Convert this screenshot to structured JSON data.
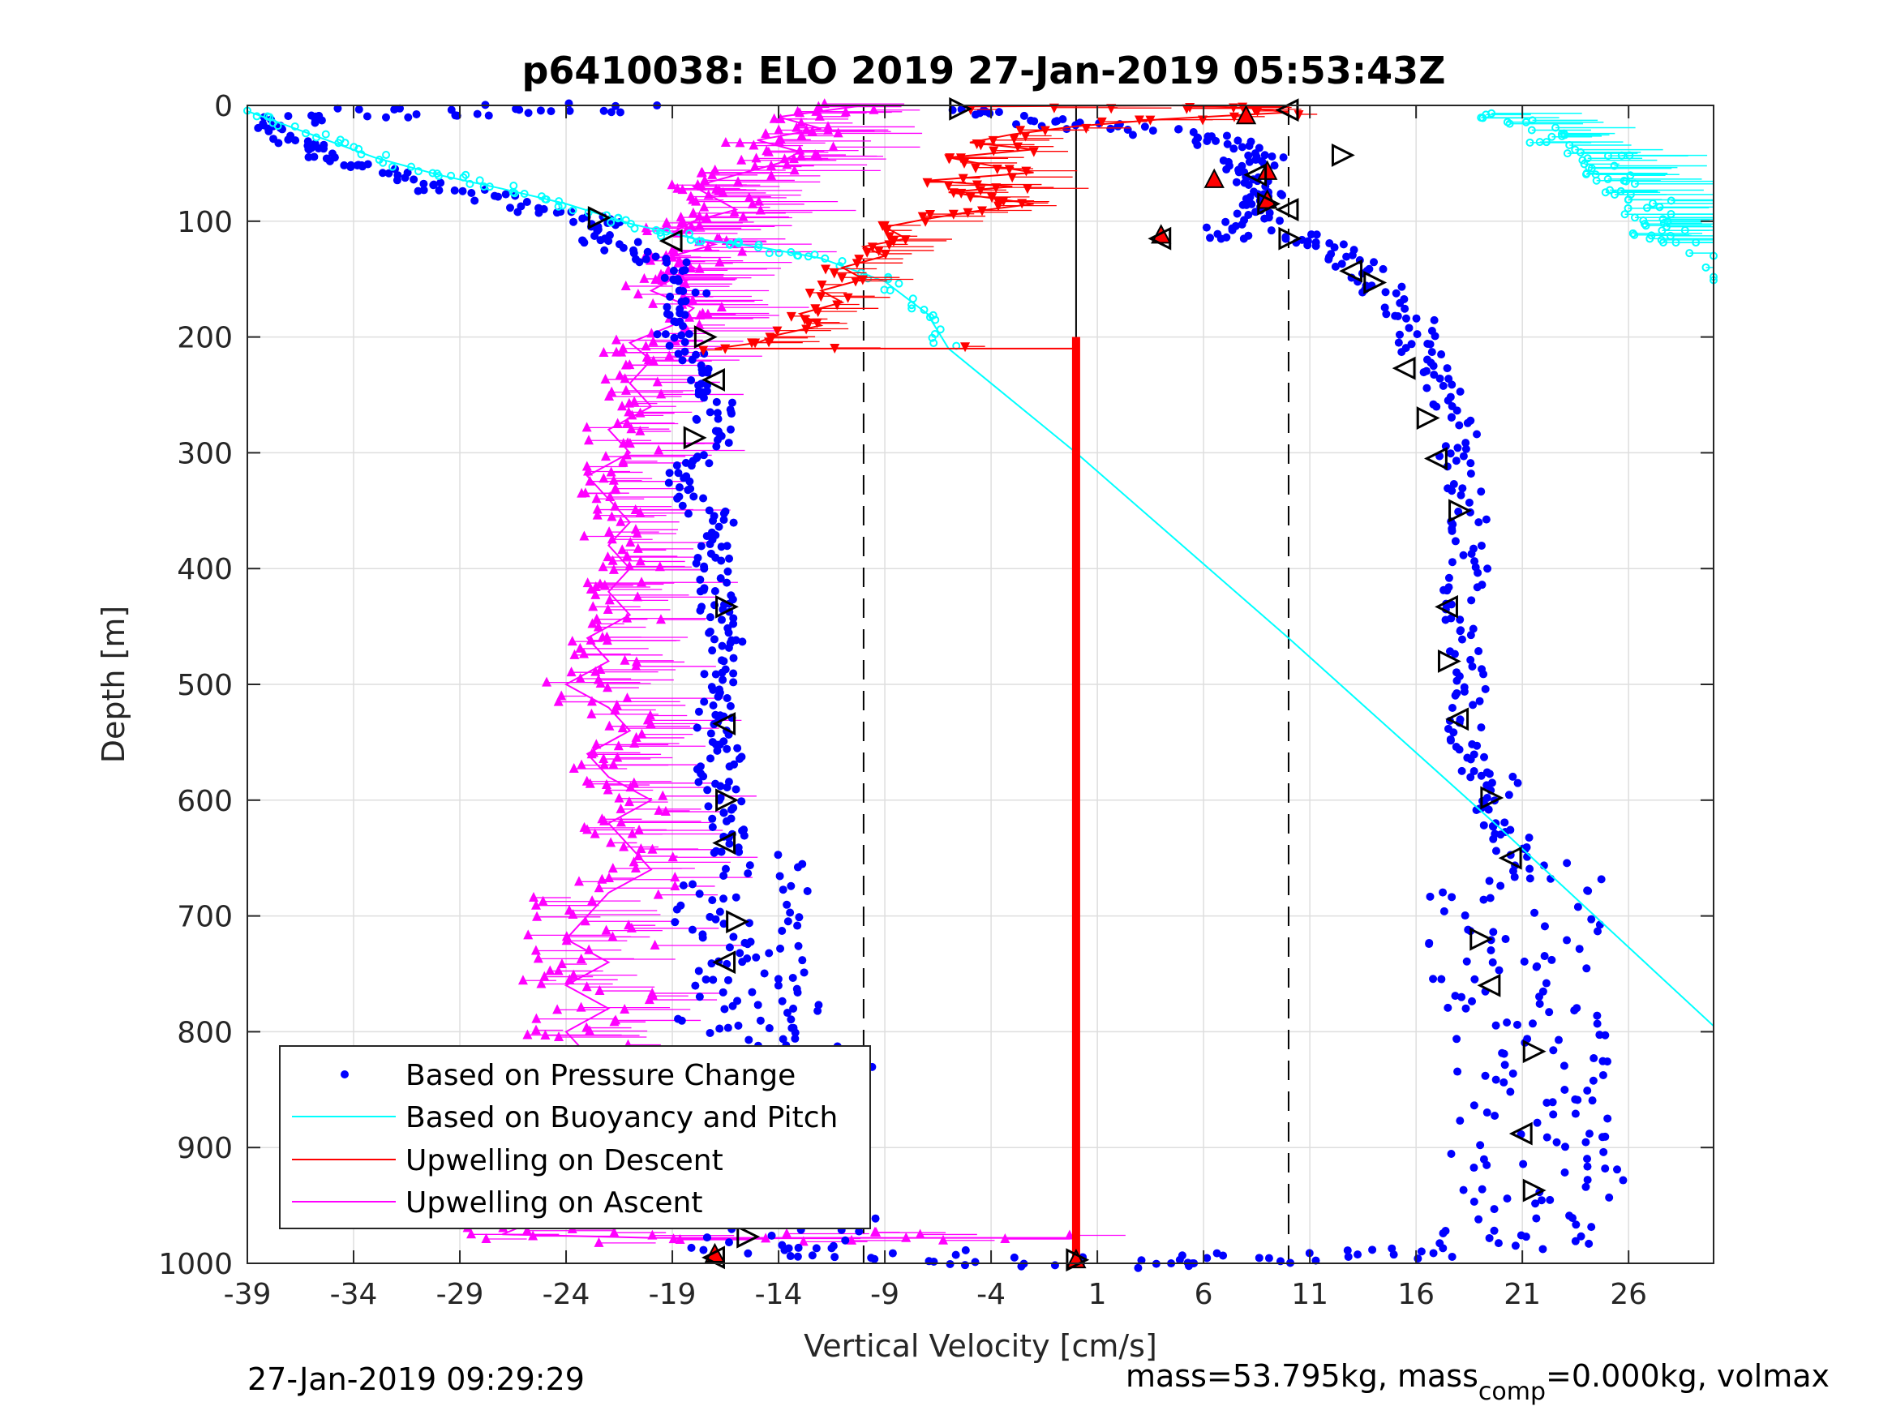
{
  "chart_data": {
    "type": "scatter",
    "title": "p6410038: ELO 2019 27-Jan-2019 05:53:43Z",
    "xlabel": "Vertical Velocity [cm/s]",
    "ylabel": "Depth [m]",
    "xlim": [
      -39,
      30
    ],
    "ylim": [
      0,
      1000
    ],
    "y_reversed": true,
    "grid": true,
    "x_ticks": [
      "-39",
      "-34",
      "-29",
      "-24",
      "-19",
      "-14",
      "-9",
      "-4",
      "1",
      "6",
      "11",
      "16",
      "21",
      "26"
    ],
    "x_tick_values": [
      -39,
      -34,
      -29,
      -24,
      -19,
      -14,
      -9,
      -4,
      1,
      6,
      11,
      16,
      21,
      26
    ],
    "y_ticks": [
      "0",
      "100",
      "200",
      "300",
      "400",
      "500",
      "600",
      "700",
      "800",
      "900",
      "1000"
    ],
    "y_tick_values": [
      0,
      100,
      200,
      300,
      400,
      500,
      600,
      700,
      800,
      900,
      1000
    ],
    "reference_lines_x": [
      -10,
      0,
      10
    ],
    "legend_position": "bottom-left",
    "series": [
      {
        "name": "Based on Pressure Change",
        "color": "#0000ff",
        "marker": "dot",
        "descent": [
          [
            -5,
            2
          ],
          [
            -3,
            8
          ],
          [
            0,
            18
          ],
          [
            4,
            22
          ],
          [
            6,
            28
          ],
          [
            8,
            35
          ],
          [
            9,
            45
          ],
          [
            7,
            55
          ],
          [
            8,
            65
          ],
          [
            9,
            75
          ],
          [
            8,
            85
          ],
          [
            9,
            95
          ],
          [
            6,
            110
          ],
          [
            10,
            112
          ],
          [
            12,
            120
          ],
          [
            13,
            135
          ],
          [
            14,
            150
          ],
          [
            15,
            170
          ],
          [
            16,
            190
          ],
          [
            16,
            210
          ],
          [
            17,
            230
          ],
          [
            17.5,
            250
          ],
          [
            18,
            280
          ],
          [
            18,
            310
          ],
          [
            18.5,
            340
          ],
          [
            18.5,
            370
          ],
          [
            18.5,
            400
          ],
          [
            18,
            430
          ],
          [
            18,
            460
          ],
          [
            18.5,
            490
          ],
          [
            18.5,
            520
          ],
          [
            18,
            550
          ],
          [
            19,
            570
          ],
          [
            20,
            590
          ],
          [
            19.5,
            610
          ],
          [
            20.5,
            630
          ],
          [
            20.5,
            650
          ],
          [
            21,
            670
          ],
          [
            20.5,
            690
          ],
          [
            21,
            710
          ],
          [
            20,
            730
          ],
          [
            21,
            750
          ],
          [
            20.5,
            770
          ],
          [
            21,
            790
          ],
          [
            21.5,
            810
          ],
          [
            21,
            830
          ],
          [
            22,
            850
          ],
          [
            21,
            870
          ],
          [
            22,
            890
          ],
          [
            21,
            910
          ],
          [
            22,
            930
          ],
          [
            21.5,
            950
          ],
          [
            21,
            970
          ],
          [
            20,
            985
          ],
          [
            15,
            992
          ],
          [
            10,
            995
          ],
          [
            5,
            998
          ],
          [
            0,
            1000
          ]
        ],
        "ascent": [
          [
            0,
            1000
          ],
          [
            -6,
            995
          ],
          [
            -12,
            990
          ],
          [
            -15,
            985
          ],
          [
            -13,
            970
          ],
          [
            -12,
            955
          ],
          [
            -14,
            940
          ],
          [
            -12,
            925
          ],
          [
            -13,
            910
          ],
          [
            -14,
            895
          ],
          [
            -13,
            880
          ],
          [
            -14,
            865
          ],
          [
            -15,
            850
          ],
          [
            -13,
            835
          ],
          [
            -14,
            820
          ],
          [
            -15,
            805
          ],
          [
            -16,
            790
          ],
          [
            -14,
            775
          ],
          [
            -16,
            760
          ],
          [
            -15,
            745
          ],
          [
            -16,
            730
          ],
          [
            -15,
            715
          ],
          [
            -16,
            700
          ],
          [
            -16,
            680
          ],
          [
            -16,
            660
          ],
          [
            -16.5,
            640
          ],
          [
            -16.5,
            620
          ],
          [
            -16.5,
            600
          ],
          [
            -17,
            580
          ],
          [
            -16.5,
            560
          ],
          [
            -17,
            540
          ],
          [
            -17,
            520
          ],
          [
            -16.5,
            500
          ],
          [
            -17,
            480
          ],
          [
            -16.5,
            460
          ],
          [
            -17,
            440
          ],
          [
            -17,
            420
          ],
          [
            -17,
            400
          ],
          [
            -17,
            380
          ],
          [
            -17,
            360
          ],
          [
            -18,
            340
          ],
          [
            -19,
            320
          ],
          [
            -17,
            300
          ],
          [
            -17,
            280
          ],
          [
            -17,
            260
          ],
          [
            -17,
            240
          ],
          [
            -18,
            220
          ],
          [
            -19,
            200
          ],
          [
            -19,
            180
          ],
          [
            -18,
            160
          ],
          [
            -19,
            140
          ],
          [
            -21,
            125
          ],
          [
            -23,
            115
          ],
          [
            -22,
            105
          ],
          [
            -24,
            95
          ],
          [
            -26,
            85
          ],
          [
            -29,
            75
          ],
          [
            -31,
            65
          ],
          [
            -33,
            55
          ],
          [
            -35,
            45
          ],
          [
            -36,
            35
          ],
          [
            -37,
            25
          ],
          [
            -38,
            15
          ],
          [
            -35,
            8
          ],
          [
            -30,
            5
          ],
          [
            -25,
            3
          ],
          [
            -20,
            2
          ]
        ]
      },
      {
        "name": "Based on Buoyancy and Pitch",
        "color": "#00ffff",
        "marker": "line",
        "main_line": [
          [
            -39,
            5
          ],
          [
            -36,
            25
          ],
          [
            -33,
            45
          ],
          [
            -30,
            60
          ],
          [
            -27,
            72
          ],
          [
            -24,
            85
          ],
          [
            -21,
            102
          ],
          [
            -18,
            115
          ],
          [
            -15,
            122
          ],
          [
            -12,
            132
          ],
          [
            -9,
            152
          ],
          [
            -7,
            180
          ],
          [
            -6,
            210
          ],
          [
            0,
            300
          ],
          [
            10,
            460
          ],
          [
            20,
            625
          ],
          [
            30,
            795
          ]
        ],
        "surface_cluster": [
          [
            19,
            5
          ],
          [
            21,
            15
          ],
          [
            23,
            25
          ],
          [
            22,
            35
          ],
          [
            25,
            45
          ],
          [
            24,
            55
          ],
          [
            26,
            65
          ],
          [
            25,
            75
          ],
          [
            27,
            85
          ],
          [
            27,
            95
          ],
          [
            28,
            105
          ],
          [
            27,
            115
          ],
          [
            29,
            118
          ],
          [
            30,
            160
          ]
        ]
      },
      {
        "name": "Upwelling on Descent",
        "color": "#ff0000",
        "marker": "triangle-down",
        "points": [
          [
            -5,
            1
          ],
          [
            5,
            0
          ],
          [
            8,
            2
          ],
          [
            10,
            6
          ],
          [
            4,
            12
          ],
          [
            0,
            18
          ],
          [
            -3,
            25
          ],
          [
            -5,
            32
          ],
          [
            -2,
            38
          ],
          [
            -6,
            45
          ],
          [
            -4,
            52
          ],
          [
            -2,
            58
          ],
          [
            -7,
            65
          ],
          [
            -3,
            70
          ],
          [
            -6,
            75
          ],
          [
            -4,
            80
          ],
          [
            -2,
            85
          ],
          [
            -5,
            92
          ],
          [
            -7,
            98
          ],
          [
            -9,
            105
          ],
          [
            -8,
            115
          ],
          [
            -10,
            122
          ],
          [
            -9,
            130
          ],
          [
            -11,
            140
          ],
          [
            -10,
            150
          ],
          [
            -12,
            160
          ],
          [
            -11,
            170
          ],
          [
            -13,
            180
          ],
          [
            -12,
            190
          ],
          [
            -14,
            198
          ],
          [
            -15,
            205
          ],
          [
            -17,
            210
          ],
          [
            0,
            210
          ]
        ],
        "bar_x": 0,
        "bar_from_depth": 200,
        "bar_to_depth": 1000
      },
      {
        "name": "Upwelling on Ascent",
        "color": "#ff00ff",
        "marker": "triangle-up",
        "points": [
          [
            -10,
            0
          ],
          [
            -14,
            10
          ],
          [
            -12,
            20
          ],
          [
            -15,
            30
          ],
          [
            -13,
            40
          ],
          [
            -14,
            50
          ],
          [
            -16,
            60
          ],
          [
            -18,
            70
          ],
          [
            -17,
            80
          ],
          [
            -16,
            90
          ],
          [
            -18,
            100
          ],
          [
            -19,
            110
          ],
          [
            -17,
            120
          ],
          [
            -19,
            130
          ],
          [
            -18,
            140
          ],
          [
            -19,
            150
          ],
          [
            -20,
            160
          ],
          [
            -18,
            175
          ],
          [
            -19,
            190
          ],
          [
            -21,
            205
          ],
          [
            -20,
            220
          ],
          [
            -21,
            240
          ],
          [
            -20,
            260
          ],
          [
            -22,
            280
          ],
          [
            -21,
            300
          ],
          [
            -23,
            320
          ],
          [
            -22,
            340
          ],
          [
            -21,
            360
          ],
          [
            -22,
            380
          ],
          [
            -21,
            400
          ],
          [
            -22,
            420
          ],
          [
            -21,
            440
          ],
          [
            -23,
            460
          ],
          [
            -22,
            480
          ],
          [
            -24,
            500
          ],
          [
            -22,
            520
          ],
          [
            -21,
            540
          ],
          [
            -23,
            560
          ],
          [
            -22,
            580
          ],
          [
            -20,
            600
          ],
          [
            -22,
            620
          ],
          [
            -21,
            640
          ],
          [
            -20,
            660
          ],
          [
            -22,
            680
          ],
          [
            -23,
            700
          ],
          [
            -24,
            720
          ],
          [
            -22,
            740
          ],
          [
            -24,
            760
          ],
          [
            -22,
            780
          ],
          [
            -24,
            800
          ],
          [
            -23,
            820
          ],
          [
            -25,
            840
          ],
          [
            -24,
            860
          ],
          [
            -26,
            880
          ],
          [
            -25,
            900
          ],
          [
            -24,
            920
          ],
          [
            -26,
            940
          ],
          [
            -25,
            960
          ],
          [
            -27,
            975
          ],
          [
            -20,
            978
          ],
          [
            -10,
            978
          ],
          [
            0,
            978
          ]
        ]
      }
    ],
    "black_triangle_markers": [
      [
        -5.5,
        3
      ],
      [
        10,
        4
      ],
      [
        12.5,
        43
      ],
      [
        8.5,
        60
      ],
      [
        9,
        85
      ],
      [
        10,
        90
      ],
      [
        10,
        115
      ],
      [
        4,
        115
      ],
      [
        -22.5,
        97
      ],
      [
        -19,
        117
      ],
      [
        -17.5,
        200
      ],
      [
        -17,
        237
      ],
      [
        -18,
        287
      ],
      [
        13,
        143
      ],
      [
        14,
        153
      ],
      [
        15.5,
        227
      ],
      [
        16.5,
        270
      ],
      [
        17,
        305
      ],
      [
        18,
        350
      ],
      [
        17.5,
        433
      ],
      [
        17.5,
        480
      ],
      [
        18,
        530
      ],
      [
        19.5,
        598
      ],
      [
        20.5,
        650
      ],
      [
        -16.5,
        433
      ],
      [
        -16.5,
        534
      ],
      [
        -16.5,
        600
      ],
      [
        -16.5,
        637
      ],
      [
        -16,
        705
      ],
      [
        -16.5,
        740
      ],
      [
        19,
        720
      ],
      [
        19.5,
        760
      ],
      [
        21.5,
        817
      ],
      [
        21,
        888
      ],
      [
        21.5,
        937
      ],
      [
        -11,
        910
      ],
      [
        -15.5,
        977
      ],
      [
        -17,
        995
      ],
      [
        0,
        997
      ]
    ],
    "red_highlight_markers": [
      [
        8,
        10
      ],
      [
        6.5,
        65
      ],
      [
        9,
        58
      ],
      [
        9,
        83
      ],
      [
        4,
        113
      ],
      [
        -17,
        993
      ],
      [
        0,
        998
      ]
    ]
  },
  "legend": {
    "items": [
      {
        "label": "Based on Pressure Change",
        "color": "#0000ff",
        "style": "dot"
      },
      {
        "label": "Based on Buoyancy and Pitch",
        "color": "#00ffff",
        "style": "line"
      },
      {
        "label": "Upwelling on Descent",
        "color": "#ff0000",
        "style": "line"
      },
      {
        "label": "Upwelling on Ascent",
        "color": "#ff00ff",
        "style": "line"
      }
    ]
  },
  "footer": {
    "timestamp": "27-Jan-2019 09:29:29",
    "mass_prefix": "mass=53.795kg, mass",
    "mass_sub": "comp",
    "mass_suffix": "=0.000kg, volmax"
  }
}
